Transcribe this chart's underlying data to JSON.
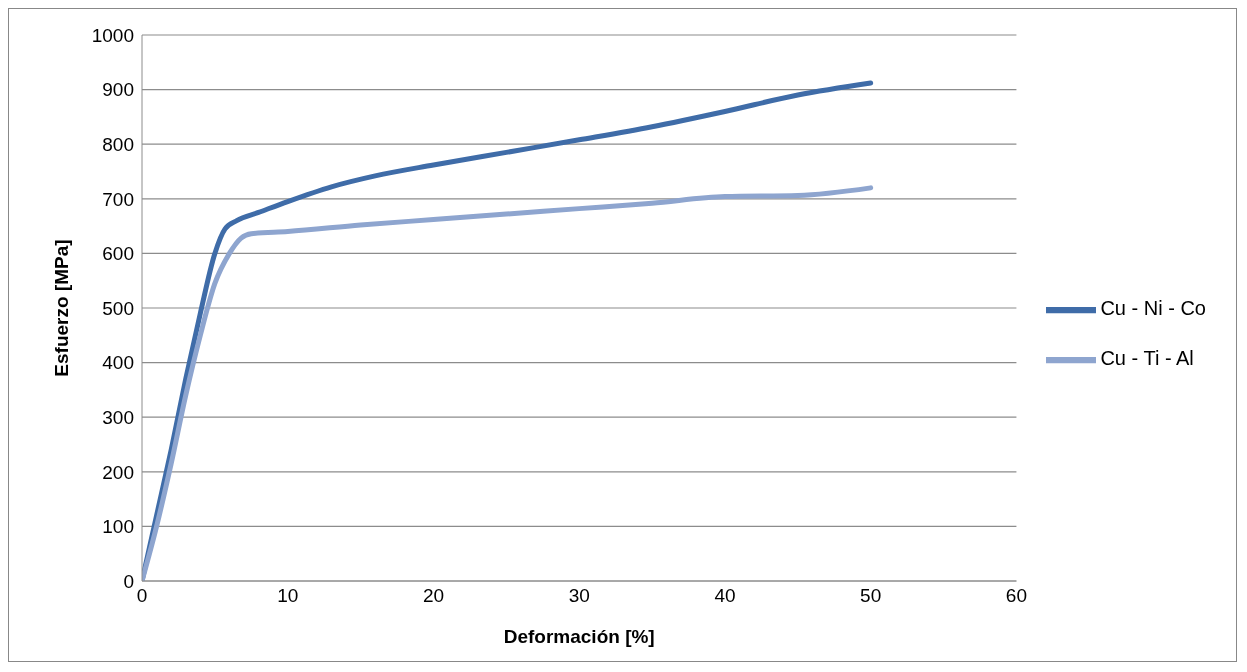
{
  "chart_data": {
    "type": "line",
    "xlabel": "Deformación [%]",
    "ylabel": "Esfuerzo [MPa]",
    "xlim": [
      0,
      60
    ],
    "xticks": [
      0,
      10,
      20,
      30,
      40,
      50,
      60
    ],
    "ylim": [
      0,
      1000
    ],
    "yticks": [
      0,
      100,
      200,
      300,
      400,
      500,
      600,
      700,
      800,
      900,
      1000
    ],
    "grid": "y",
    "legend": "right",
    "marker": "none",
    "line_style": "solid",
    "series": [
      {
        "name": "Cu - Ni - Co",
        "color": "#3f6ca8",
        "x": [
          0,
          1,
          2,
          3,
          4,
          5,
          5.7,
          6.5,
          8,
          10,
          13,
          16,
          20,
          25,
          30,
          35,
          40,
          45,
          50
        ],
        "values": [
          0,
          120,
          240,
          370,
          490,
          600,
          645,
          660,
          675,
          695,
          722,
          742,
          762,
          785,
          808,
          832,
          860,
          890,
          912
        ]
      },
      {
        "name": "Cu - Ti - Al",
        "color": "#8ea5cf",
        "x": [
          0,
          1,
          2,
          3,
          4,
          5,
          6,
          6.8,
          7.5,
          10,
          15,
          20,
          25,
          30,
          35,
          40,
          45,
          50
        ],
        "values": [
          0,
          100,
          215,
          340,
          450,
          545,
          600,
          628,
          636,
          640,
          652,
          662,
          672,
          682,
          692,
          704,
          706,
          720
        ]
      }
    ]
  }
}
